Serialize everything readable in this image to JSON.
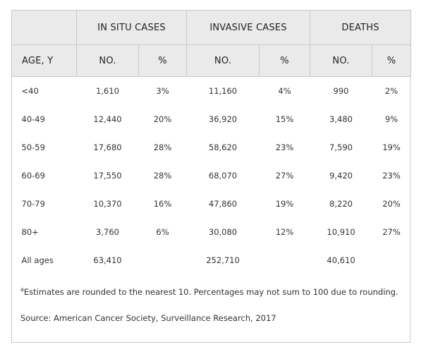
{
  "header": {
    "groups": [
      "IN SITU CASES",
      "INVASIVE CASES",
      "DEATHS"
    ],
    "age_label": "AGE, Y",
    "no_label": "NO.",
    "pct_label": "%"
  },
  "rows": [
    {
      "age": "<40",
      "insitu_no": "1,610",
      "insitu_pct": "3%",
      "invasive_no": "11,160",
      "invasive_pct": "4%",
      "deaths_no": "990",
      "deaths_pct": "2%"
    },
    {
      "age": "40-49",
      "insitu_no": "12,440",
      "insitu_pct": "20%",
      "invasive_no": "36,920",
      "invasive_pct": "15%",
      "deaths_no": "3,480",
      "deaths_pct": "9%"
    },
    {
      "age": "50-59",
      "insitu_no": "17,680",
      "insitu_pct": "28%",
      "invasive_no": "58,620",
      "invasive_pct": "23%",
      "deaths_no": "7,590",
      "deaths_pct": "19%"
    },
    {
      "age": "60-69",
      "insitu_no": "17,550",
      "insitu_pct": "28%",
      "invasive_no": "68,070",
      "invasive_pct": "27%",
      "deaths_no": "9,420",
      "deaths_pct": "23%"
    },
    {
      "age": "70-79",
      "insitu_no": "10,370",
      "insitu_pct": "16%",
      "invasive_no": "47,860",
      "invasive_pct": "19%",
      "deaths_no": "8,220",
      "deaths_pct": "20%"
    },
    {
      "age": "80+",
      "insitu_no": "3,760",
      "insitu_pct": "6%",
      "invasive_no": "30,080",
      "invasive_pct": "12%",
      "deaths_no": "10,910",
      "deaths_pct": "27%"
    }
  ],
  "totals": {
    "label": "All ages",
    "insitu_no": "63,410",
    "invasive_no": "252,710",
    "deaths_no": "40,610"
  },
  "footnote": {
    "marker": "a",
    "text": "Estimates are rounded to the nearest 10. Percentages may not sum to 100 due to rounding."
  },
  "source": "Source: American Cancer Society, Surveillance Research, 2017"
}
